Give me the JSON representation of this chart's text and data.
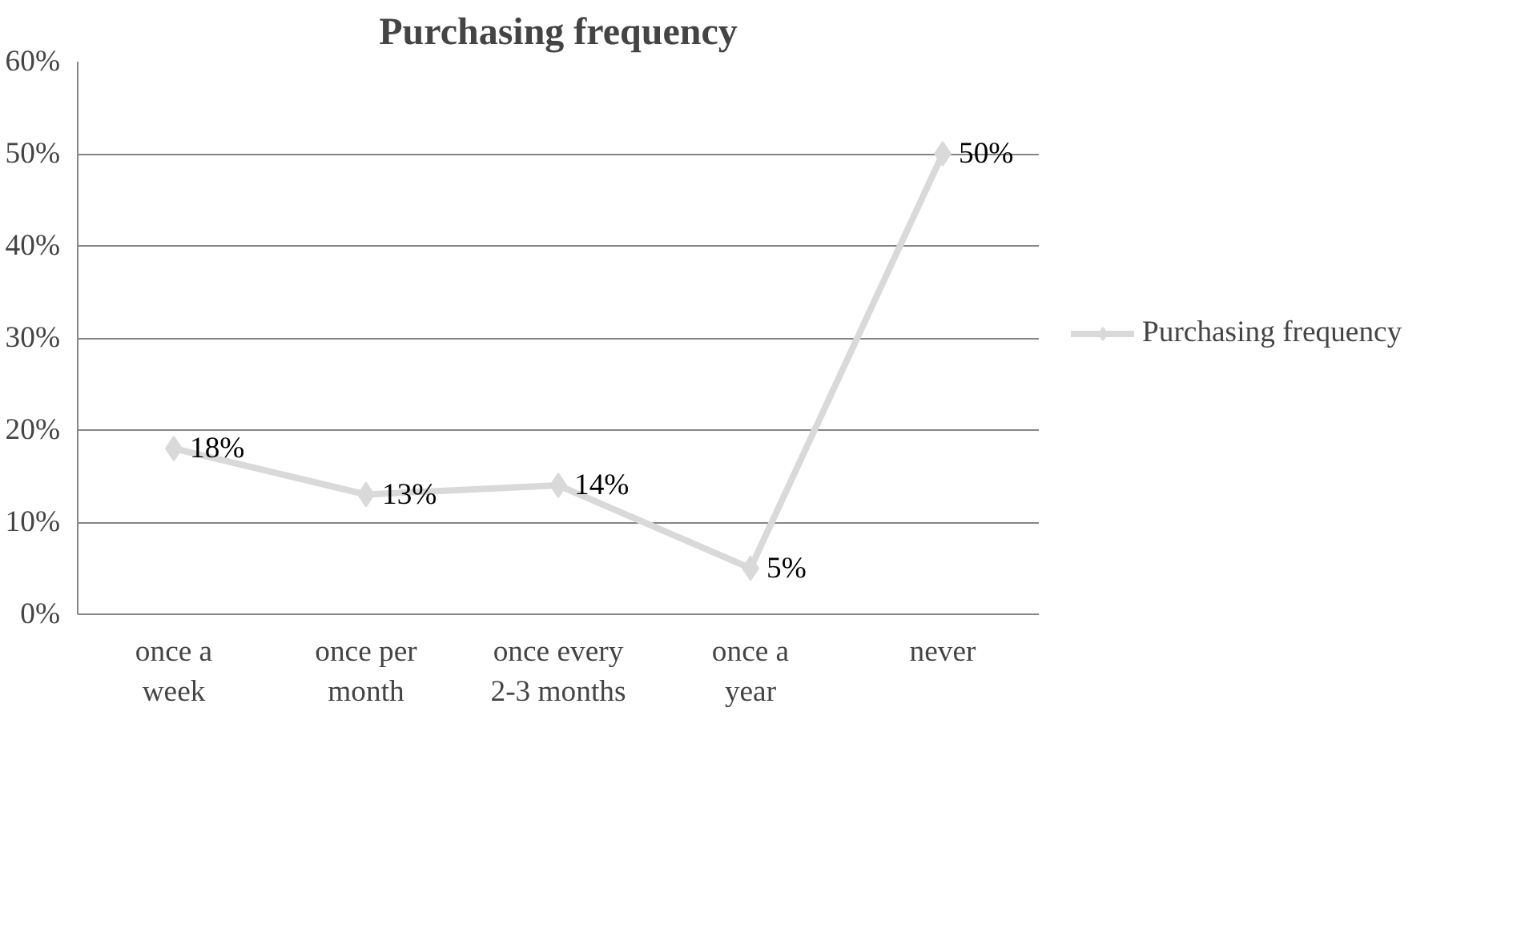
{
  "chart_data": {
    "type": "line",
    "title": "Purchasing frequency",
    "categories": [
      "once a week",
      "once per month",
      "once every 2-3 months",
      "once a year",
      "never"
    ],
    "series": [
      {
        "name": "Purchasing frequency",
        "color": "#d9d9d9",
        "values": [
          18,
          13,
          14,
          5,
          50
        ],
        "value_labels": [
          "18%",
          "13%",
          "14%",
          "5%",
          "50%"
        ]
      }
    ],
    "ylim": [
      0,
      60
    ],
    "yticks": [
      {
        "value": 0,
        "label": "0%"
      },
      {
        "value": 10,
        "label": "10%"
      },
      {
        "value": 20,
        "label": "20%"
      },
      {
        "value": 30,
        "label": "30%"
      },
      {
        "value": 40,
        "label": "40%"
      },
      {
        "value": 50,
        "label": "50%"
      },
      {
        "value": 60,
        "label": "60%"
      }
    ],
    "grid": "y",
    "legend": "right",
    "marker": "diamond",
    "line_style": "solid"
  }
}
